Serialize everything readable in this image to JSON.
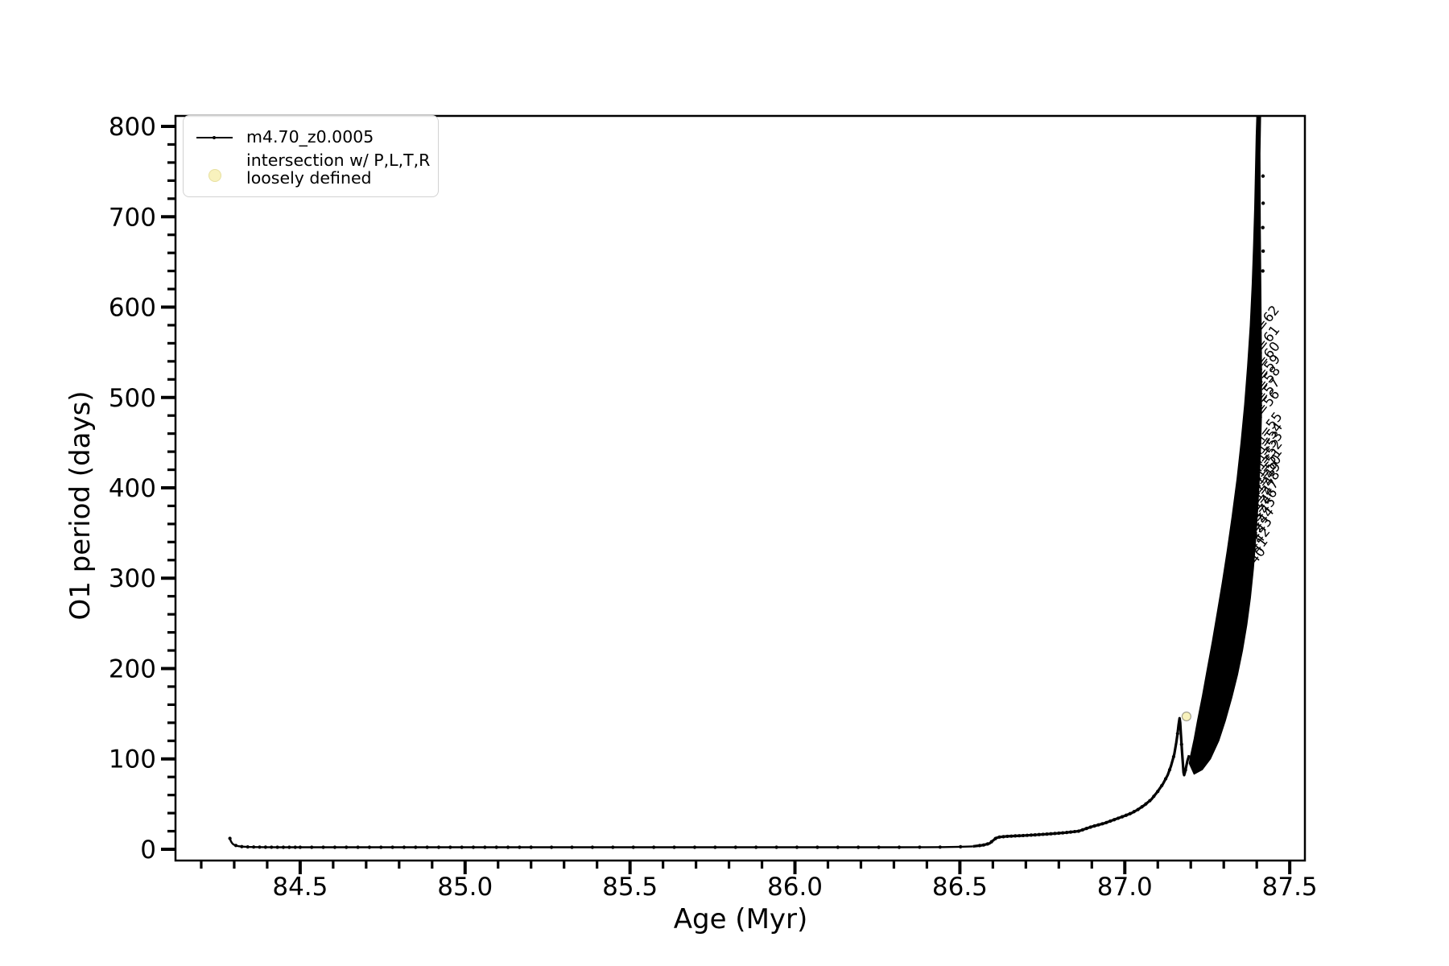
{
  "chart_data": {
    "type": "line",
    "title": "",
    "xlabel": "Age (Myr)",
    "ylabel": "O1 period (days)",
    "xlim": [
      84.122,
      87.546
    ],
    "ylim": [
      -12.5,
      811.6
    ],
    "xticks": [
      84.5,
      85.0,
      85.5,
      86.0,
      86.5,
      87.0,
      87.5
    ],
    "yticks": [
      0,
      100,
      200,
      300,
      400,
      500,
      600,
      700,
      800
    ],
    "x_minor_step": 0.1,
    "y_minor_step": 20,
    "grid": false,
    "legend_position": "upper-left",
    "series": [
      {
        "name": "m4.70_z0.0005",
        "color": "#000000",
        "marker": "dot",
        "points": [
          [
            84.287,
            12
          ],
          [
            84.29,
            9
          ],
          [
            84.293,
            7
          ],
          [
            84.297,
            5.5
          ],
          [
            84.302,
            4.5
          ],
          [
            84.31,
            3.6
          ],
          [
            84.32,
            3.0
          ],
          [
            84.34,
            2.6
          ],
          [
            84.37,
            2.4
          ],
          [
            84.4,
            2.3
          ],
          [
            84.45,
            2.2
          ],
          [
            84.5,
            2.2
          ],
          [
            84.6,
            2.2
          ],
          [
            84.7,
            2.2
          ],
          [
            84.8,
            2.2
          ],
          [
            84.9,
            2.2
          ],
          [
            85.0,
            2.2
          ],
          [
            85.1,
            2.2
          ],
          [
            85.2,
            2.2
          ],
          [
            85.3,
            2.2
          ],
          [
            85.4,
            2.2
          ],
          [
            85.5,
            2.2
          ],
          [
            85.6,
            2.2
          ],
          [
            85.7,
            2.2
          ],
          [
            85.8,
            2.2
          ],
          [
            85.9,
            2.2
          ],
          [
            86.0,
            2.2
          ],
          [
            86.1,
            2.2
          ],
          [
            86.2,
            2.2
          ],
          [
            86.3,
            2.2
          ],
          [
            86.4,
            2.3
          ],
          [
            86.45,
            2.4
          ],
          [
            86.5,
            2.7
          ],
          [
            86.54,
            3.2
          ],
          [
            86.57,
            4.5
          ],
          [
            86.59,
            6.5
          ],
          [
            86.6,
            9.5
          ],
          [
            86.61,
            12.5
          ],
          [
            86.62,
            13.5
          ],
          [
            86.64,
            14.2
          ],
          [
            86.67,
            14.8
          ],
          [
            86.7,
            15.3
          ],
          [
            86.74,
            16.2
          ],
          [
            86.78,
            17.2
          ],
          [
            86.82,
            18.4
          ],
          [
            86.86,
            20.0
          ],
          [
            86.9,
            25.0
          ],
          [
            86.94,
            29.0
          ],
          [
            86.97,
            33.0
          ],
          [
            87.0,
            37.0
          ],
          [
            87.02,
            40.0
          ],
          [
            87.04,
            44.0
          ],
          [
            87.06,
            49.0
          ],
          [
            87.08,
            55.0
          ],
          [
            87.1,
            64.0
          ],
          [
            87.115,
            72.0
          ],
          [
            87.13,
            82.0
          ],
          [
            87.14,
            92.0
          ],
          [
            87.15,
            105.0
          ],
          [
            87.156,
            118.0
          ],
          [
            87.16,
            128.0
          ],
          [
            87.163,
            138.0
          ],
          [
            87.166,
            145.0
          ],
          [
            87.168,
            140.0
          ],
          [
            87.17,
            128.0
          ],
          [
            87.173,
            110.0
          ],
          [
            87.176,
            95.0
          ],
          [
            87.178,
            85.0
          ],
          [
            87.18,
            82.0
          ],
          [
            87.183,
            86.0
          ],
          [
            87.187,
            93.0
          ],
          [
            87.19,
            98.0
          ],
          [
            87.195,
            104.0
          ]
        ],
        "marker_spacing": [
          [
            84.287,
            84.5,
            0.018
          ],
          [
            84.5,
            85.2,
            0.035
          ],
          [
            85.2,
            86.56,
            0.062
          ],
          [
            86.56,
            87.195,
            0.012
          ]
        ]
      }
    ],
    "oscillation_band": {
      "description": "dense rapid oscillations rendered as solid filled region, ages 87.20-87.41 Myr",
      "color": "#000000",
      "left_edge": [
        [
          87.195,
          95
        ],
        [
          87.2,
          105
        ],
        [
          87.21,
          122
        ],
        [
          87.22,
          142
        ],
        [
          87.235,
          170
        ],
        [
          87.25,
          200
        ],
        [
          87.265,
          230
        ],
        [
          87.28,
          262
        ],
        [
          87.295,
          295
        ],
        [
          87.31,
          330
        ],
        [
          87.325,
          368
        ],
        [
          87.34,
          410
        ],
        [
          87.352,
          450
        ],
        [
          87.363,
          492
        ],
        [
          87.372,
          535
        ],
        [
          87.38,
          580
        ],
        [
          87.386,
          625
        ],
        [
          87.39,
          668
        ],
        [
          87.3935,
          710
        ],
        [
          87.396,
          752
        ],
        [
          87.398,
          790
        ],
        [
          87.4,
          812
        ]
      ],
      "right_edge": [
        [
          87.412,
          812
        ],
        [
          87.41,
          770
        ],
        [
          87.4105,
          730
        ],
        [
          87.411,
          690
        ],
        [
          87.412,
          650
        ],
        [
          87.413,
          610
        ],
        [
          87.414,
          565
        ],
        [
          87.415,
          520
        ],
        [
          87.4145,
          480
        ],
        [
          87.412,
          445
        ],
        [
          87.408,
          410
        ],
        [
          87.403,
          375
        ],
        [
          87.397,
          342
        ],
        [
          87.39,
          310
        ],
        [
          87.381,
          278
        ],
        [
          87.37,
          248
        ],
        [
          87.357,
          220
        ],
        [
          87.342,
          193
        ],
        [
          87.325,
          168
        ],
        [
          87.305,
          142
        ],
        [
          87.285,
          120
        ],
        [
          87.26,
          100
        ],
        [
          87.235,
          88
        ],
        [
          87.21,
          83
        ]
      ],
      "ragged_nubs": [
        [
          87.414,
          745
        ],
        [
          87.4145,
          715
        ],
        [
          87.4135,
          688
        ],
        [
          87.4145,
          662
        ],
        [
          87.4135,
          640
        ]
      ]
    },
    "intersection_markers": {
      "color": "#f8f2bd",
      "edge_color": "rgba(0,0,0,0.35)",
      "points": [
        [
          87.187,
          147
        ]
      ]
    },
    "annotations": {
      "rotation_deg": -52,
      "font_size": 16.5,
      "items": [
        {
          "label": "n=62",
          "x": 87.402,
          "y": 565
        },
        {
          "label": "n=61",
          "x": 87.403,
          "y": 543
        },
        {
          "label": "n=60",
          "x": 87.404,
          "y": 525
        },
        {
          "label": "n=59",
          "x": 87.405,
          "y": 511
        },
        {
          "label": "n=58",
          "x": 87.405,
          "y": 498
        },
        {
          "label": "n=57",
          "x": 87.404,
          "y": 485
        },
        {
          "label": "n=56",
          "x": 87.403,
          "y": 472
        },
        {
          "label": "n=55",
          "x": 87.411,
          "y": 447
        },
        {
          "label": "n=54",
          "x": 87.412,
          "y": 436
        },
        {
          "label": "n=53",
          "x": 87.412,
          "y": 426
        },
        {
          "label": "n=52",
          "x": 87.411,
          "y": 417
        },
        {
          "label": "n=51",
          "x": 87.41,
          "y": 408
        },
        {
          "label": "n=50",
          "x": 87.408,
          "y": 400
        },
        {
          "label": "n=49",
          "x": 87.406,
          "y": 392
        },
        {
          "label": "n=48",
          "x": 87.403,
          "y": 383
        },
        {
          "label": "n=47",
          "x": 87.4,
          "y": 373
        },
        {
          "label": "n=46",
          "x": 87.396,
          "y": 363
        },
        {
          "label": "n=45",
          "x": 87.391,
          "y": 353
        },
        {
          "label": "n=44",
          "x": 87.386,
          "y": 342
        },
        {
          "label": "n=43",
          "x": 87.38,
          "y": 331
        },
        {
          "label": "n=42",
          "x": 87.374,
          "y": 320
        },
        {
          "label": "n=41",
          "x": 87.367,
          "y": 309
        },
        {
          "label": "n=40",
          "x": 87.36,
          "y": 298
        }
      ]
    },
    "legend": {
      "entries": [
        {
          "label": "m4.70_z0.0005",
          "marker": "line-with-dot",
          "color": "#000000"
        },
        {
          "label": "intersection w/ P,L,T,R",
          "label2": "loosely defined",
          "marker": "circle",
          "color": "#f8f2bd"
        }
      ]
    }
  }
}
